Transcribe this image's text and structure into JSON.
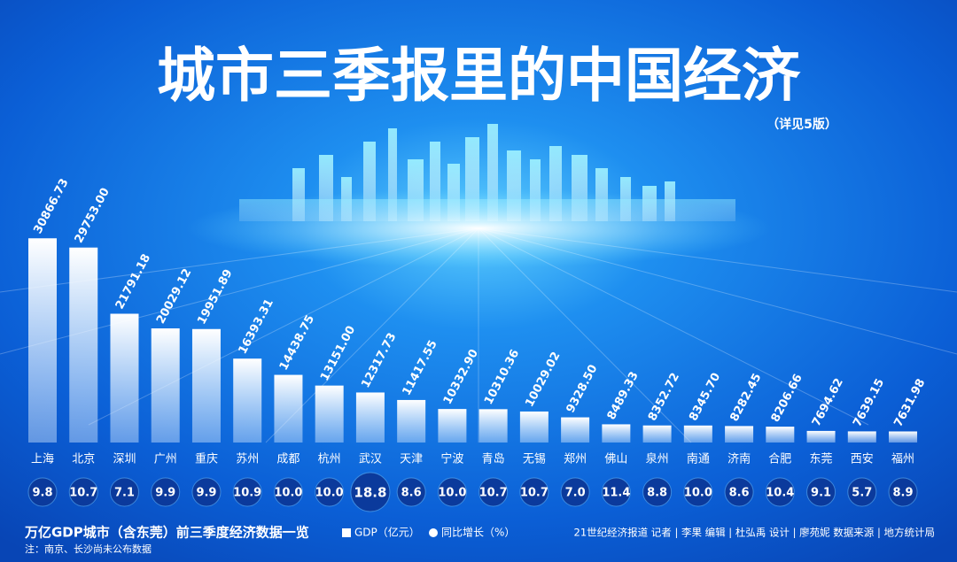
{
  "chart_data": {
    "type": "bar",
    "title": "城市三季报里的中国经济",
    "subtitle": "（详见5版）",
    "categories": [
      "上海",
      "北京",
      "深圳",
      "广州",
      "重庆",
      "苏州",
      "成都",
      "杭州",
      "武汉",
      "天津",
      "宁波",
      "青岛",
      "无锡",
      "郑州",
      "佛山",
      "泉州",
      "南通",
      "济南",
      "合肥",
      "东莞",
      "西安",
      "福州"
    ],
    "series": [
      {
        "name": "GDP（亿元）",
        "color": "#ffffff",
        "values": [
          30866.73,
          29753.0,
          21791.18,
          20029.12,
          19951.89,
          16393.31,
          14438.75,
          13151.0,
          12317.73,
          11417.55,
          10332.9,
          10310.36,
          10029.02,
          9328.5,
          8489.33,
          8352.72,
          8345.7,
          8282.45,
          8206.66,
          7694.62,
          7639.15,
          7631.98
        ],
        "value_labels": [
          "30866.73",
          "29753.00",
          "21791.18",
          "20029.12",
          "19951.89",
          "16393.31",
          "14438.75",
          "13151.00",
          "12317.73",
          "11417.55",
          "10332.90",
          "10310.36",
          "10029.02",
          "9328.50",
          "8489.33",
          "8352.72",
          "8345.70",
          "8282.45",
          "8206.66",
          "7694.62",
          "7639.15",
          "7631.98"
        ]
      },
      {
        "name": "同比增长（%）",
        "color": "#0b3a9c",
        "values": [
          9.8,
          10.7,
          7.1,
          9.9,
          9.9,
          10.9,
          10.0,
          10.0,
          18.8,
          8.6,
          10.0,
          10.7,
          10.7,
          7.0,
          11.4,
          8.8,
          10.0,
          8.6,
          10.4,
          9.1,
          5.7,
          8.9
        ],
        "value_labels": [
          "9.8",
          "10.7",
          "7.1",
          "9.9",
          "9.9",
          "10.9",
          "10.0",
          "10.0",
          "18.8",
          "8.6",
          "10.0",
          "10.7",
          "10.7",
          "7.0",
          "11.4",
          "8.8",
          "10.0",
          "8.6",
          "10.4",
          "9.1",
          "5.7",
          "8.9"
        ]
      }
    ],
    "ylim": [
      6300,
      31000
    ],
    "footer_title": "万亿GDP城市（含东莞）前三季度经济数据一览",
    "note": "注：南京、长沙尚未公布数据",
    "credits": "21世纪经济报道  记者 | 李果   编辑 | 杜弘禹   设计 | 廖苑妮   数据来源 | 地方统计局"
  }
}
